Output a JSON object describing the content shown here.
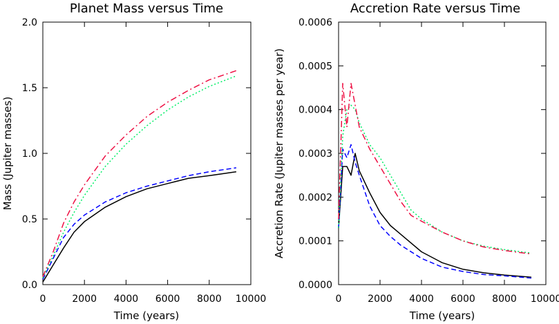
{
  "chart_data": [
    {
      "type": "line",
      "title": "Planet Mass versus Time",
      "xlabel": "Time (years)",
      "ylabel": "Mass (Jupiter masses)",
      "xlim": [
        0,
        10000
      ],
      "ylim": [
        0,
        2.0
      ],
      "xticks": [
        0,
        2000,
        4000,
        6000,
        8000,
        10000
      ],
      "xtick_labels": [
        "0",
        "2000",
        "4000",
        "6000",
        "8000",
        "10000"
      ],
      "yticks": [
        0,
        0.5,
        1.0,
        1.5,
        2.0
      ],
      "ytick_labels": [
        "0.0",
        "0.5",
        "1.0",
        "1.5",
        "2.0"
      ],
      "grid": false,
      "series": [
        {
          "style": "solid",
          "color": "#000000",
          "x": [
            0,
            500,
            1000,
            1500,
            2000,
            3000,
            4000,
            5000,
            6000,
            7000,
            8000,
            9300
          ],
          "y": [
            0.02,
            0.15,
            0.28,
            0.4,
            0.48,
            0.59,
            0.67,
            0.73,
            0.77,
            0.81,
            0.83,
            0.86
          ]
        },
        {
          "style": "dashed",
          "color": "#0000ff",
          "x": [
            0,
            500,
            1000,
            1500,
            2000,
            3000,
            4000,
            5000,
            6000,
            7000,
            8000,
            9300
          ],
          "y": [
            0.04,
            0.2,
            0.36,
            0.46,
            0.53,
            0.63,
            0.7,
            0.75,
            0.79,
            0.83,
            0.86,
            0.89
          ]
        },
        {
          "style": "dotted",
          "color": "#00ee66",
          "x": [
            0,
            500,
            1000,
            1500,
            2000,
            3000,
            4000,
            5000,
            6000,
            7000,
            8000,
            9300
          ],
          "y": [
            0.05,
            0.22,
            0.4,
            0.55,
            0.68,
            0.9,
            1.07,
            1.21,
            1.33,
            1.43,
            1.51,
            1.59
          ]
        },
        {
          "style": "dashdot",
          "color": "#ee1144",
          "x": [
            0,
            500,
            1000,
            1500,
            2000,
            3000,
            4000,
            5000,
            6000,
            7000,
            8000,
            9300
          ],
          "y": [
            0.06,
            0.25,
            0.47,
            0.63,
            0.76,
            0.98,
            1.14,
            1.28,
            1.39,
            1.48,
            1.56,
            1.63
          ]
        }
      ]
    },
    {
      "type": "line",
      "title": "Accretion Rate versus Time",
      "xlabel": "Time (years)",
      "ylabel": "Accretion Rate (Jupiter masses per year)",
      "xlim": [
        0,
        10000
      ],
      "ylim": [
        0,
        0.0006
      ],
      "xticks": [
        0,
        2000,
        4000,
        6000,
        8000,
        10000
      ],
      "xtick_labels": [
        "0",
        "2000",
        "4000",
        "6000",
        "8000",
        "10000"
      ],
      "yticks": [
        0,
        0.0001,
        0.0002,
        0.0003,
        0.0004,
        0.0005,
        0.0006
      ],
      "ytick_labels": [
        "0.0000",
        "0.0001",
        "0.0002",
        "0.0003",
        "0.0004",
        "0.0005",
        "0.0006"
      ],
      "grid": false,
      "series": [
        {
          "style": "solid",
          "color": "#000000",
          "x": [
            0,
            200,
            400,
            600,
            800,
            1000,
            1500,
            2000,
            2500,
            3000,
            4000,
            5000,
            6000,
            7000,
            8000,
            9300
          ],
          "y": [
            0.00013,
            0.00027,
            0.00027,
            0.00025,
            0.0003,
            0.00026,
            0.00021,
            0.000165,
            0.000135,
            0.000115,
            7.5e-05,
            5e-05,
            3.5e-05,
            2.7e-05,
            2.2e-05,
            1.7e-05
          ]
        },
        {
          "style": "dashed",
          "color": "#0000ff",
          "x": [
            0,
            200,
            400,
            600,
            800,
            1000,
            1500,
            2000,
            2500,
            3000,
            4000,
            5000,
            6000,
            7000,
            8000,
            9300
          ],
          "y": [
            0.00013,
            0.00031,
            0.00029,
            0.00032,
            0.00028,
            0.00025,
            0.00018,
            0.000135,
            0.00011,
            9e-05,
            6e-05,
            4e-05,
            3e-05,
            2.3e-05,
            2e-05,
            1.5e-05
          ]
        },
        {
          "style": "dotted",
          "color": "#00ee66",
          "x": [
            0,
            200,
            400,
            600,
            800,
            1000,
            1500,
            2000,
            2500,
            3000,
            3500,
            4000,
            5000,
            6000,
            7000,
            8000,
            9300
          ],
          "y": [
            0.00013,
            0.00034,
            0.0004,
            0.00041,
            0.0004,
            0.00037,
            0.00032,
            0.00029,
            0.00025,
            0.00021,
            0.00017,
            0.00015,
            0.00012,
            0.0001,
            8.8e-05,
            8e-05,
            7.2e-05
          ]
        },
        {
          "style": "dashdot",
          "color": "#ee1144",
          "x": [
            0,
            200,
            400,
            600,
            800,
            1000,
            1500,
            2000,
            2500,
            3000,
            3500,
            4000,
            5000,
            6000,
            7000,
            8000,
            9300
          ],
          "y": [
            0.00015,
            0.00046,
            0.00036,
            0.00046,
            0.00041,
            0.00036,
            0.00031,
            0.00027,
            0.00023,
            0.00019,
            0.000158,
            0.000145,
            0.00012,
            0.0001,
            8.6e-05,
            7.8e-05,
            7e-05
          ]
        }
      ]
    }
  ]
}
